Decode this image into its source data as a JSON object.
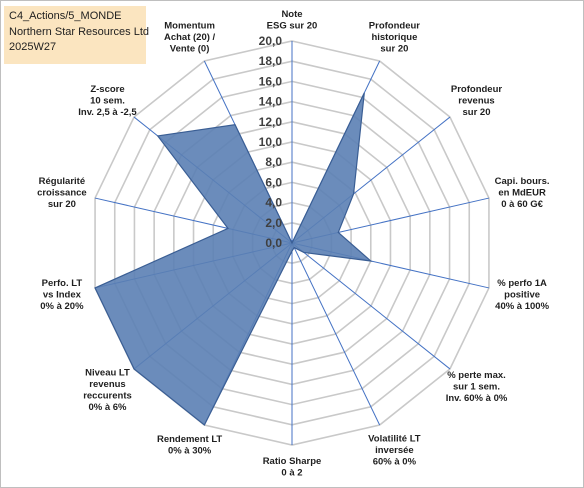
{
  "header": {
    "line1": "C4_Actions/5_MONDE",
    "line2": "Northern Star Resources Ltd",
    "line3": "2025W27"
  },
  "chart_data": {
    "type": "radar",
    "rmin": 0,
    "rmax": 20,
    "tick_step": 2,
    "tick_labels": [
      "0,0",
      "2,0",
      "4,0",
      "6,0",
      "8,0",
      "10,0",
      "12,0",
      "14,0",
      "16,0",
      "18,0",
      "20,0"
    ],
    "grid": true,
    "categories": [
      [
        "Note",
        "ESG sur 20"
      ],
      [
        "Profondeur",
        "historique",
        "sur 20"
      ],
      [
        "Profondeur",
        "revenus",
        "sur 20"
      ],
      [
        "Capi. bours.",
        "en MdEUR",
        "0 à 60 G€"
      ],
      [
        "% perfo 1A",
        "positive",
        "40% à 100%"
      ],
      [
        "% perte max.",
        "sur 1 sem.",
        "Inv. 60% à 0%"
      ],
      [
        "Volatilité LT",
        "inversée",
        "60% à 0%"
      ],
      [
        "Ratio Sharpe",
        "0 à 2"
      ],
      [
        "Rendement LT",
        "0% à 30%"
      ],
      [
        "Niveau LT",
        "revenus",
        "reccurents",
        "0% à 6%"
      ],
      [
        "Perfo. LT",
        "vs Index",
        "0% à 20%"
      ],
      [
        "Régularité",
        "croissance",
        "sur 20"
      ],
      [
        "Z-score",
        "10 sem.",
        "Inv. 2,5 à -2,5"
      ],
      [
        "Momentum",
        "Achat (20) /",
        "Vente (0)"
      ]
    ],
    "series": [
      {
        "values": [
          0,
          16.5,
          7.8,
          4.7,
          8.0,
          1.5,
          0.5,
          0.8,
          20.0,
          20.0,
          20.0,
          6.5,
          17.0,
          13.0
        ],
        "fill": "#5b80b4",
        "stroke": "#3a5e94"
      }
    ]
  }
}
